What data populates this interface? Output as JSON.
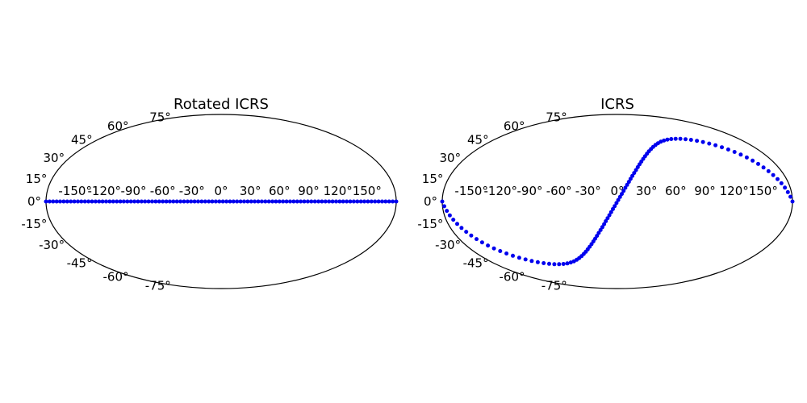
{
  "chart_data": [
    {
      "type": "scatter",
      "projection": "aitoff",
      "title": "Rotated ICRS",
      "xlabel": "",
      "ylabel": "",
      "xlim": [
        -180,
        180
      ],
      "ylim": [
        -90,
        90
      ],
      "xtick_labels": [
        "-150°",
        "-120°",
        "-90°",
        "-60°",
        "-30°",
        "0°",
        "30°",
        "60°",
        "90°",
        "120°",
        "150°"
      ],
      "ytick_labels": [
        "-75°",
        "-60°",
        "-45°",
        "-30°",
        "-15°",
        "0°",
        "15°",
        "30°",
        "45°",
        "60°",
        "75°"
      ],
      "marker_color": "#0000ee",
      "series": [
        {
          "curve": "great_circle",
          "node_lon": 0,
          "inclination": 0,
          "n_points": 100,
          "lon_range": [
            -180,
            180
          ]
        }
      ]
    },
    {
      "type": "scatter",
      "projection": "aitoff",
      "title": "ICRS",
      "xlabel": "",
      "ylabel": "",
      "xlim": [
        -180,
        180
      ],
      "ylim": [
        -90,
        90
      ],
      "xtick_labels": [
        "-150°",
        "-120°",
        "-90°",
        "-60°",
        "-30°",
        "0°",
        "30°",
        "60°",
        "90°",
        "120°",
        "150°"
      ],
      "ytick_labels": [
        "-75°",
        "-60°",
        "-45°",
        "-30°",
        "-15°",
        "0°",
        "15°",
        "30°",
        "45°",
        "60°",
        "75°"
      ],
      "marker_color": "#0000ee",
      "series": [
        {
          "curve": "great_circle",
          "node_lon": 0,
          "inclination": 60,
          "n_points": 100,
          "lon_range": [
            -180,
            180
          ]
        }
      ]
    }
  ]
}
